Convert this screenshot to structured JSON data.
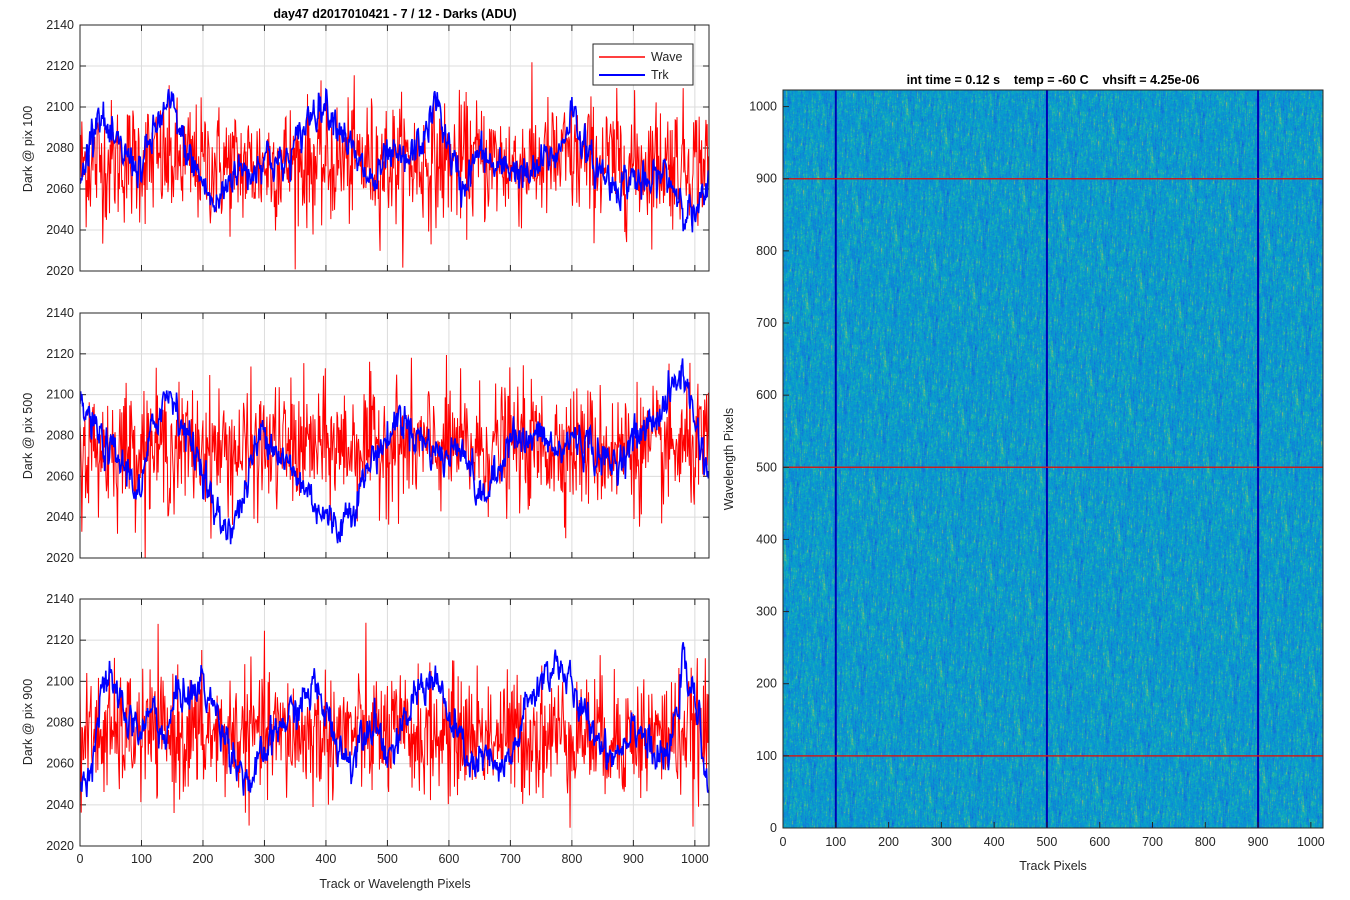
{
  "figure": {
    "title": "day47 d2017010421 - 7 / 12 - Darks (ADU)",
    "colors": {
      "wave": "#ff0000",
      "trk": "#0000ff",
      "grid": "#dcdcdc",
      "axis": "#262626"
    }
  },
  "chart_data": [
    {
      "type": "line",
      "ylabel": "Dark @ pix 100",
      "xlim": [
        0,
        1023
      ],
      "ylim": [
        2020,
        2140
      ],
      "xticks": [
        0,
        100,
        200,
        300,
        400,
        500,
        600,
        700,
        800,
        900,
        1000
      ],
      "yticks": [
        2020,
        2040,
        2060,
        2080,
        2100,
        2120,
        2140
      ],
      "grid": true,
      "legend": {
        "position": "top-right",
        "entries": [
          "Wave",
          "Trk"
        ]
      },
      "series": [
        {
          "name": "Wave",
          "color": "#ff0000",
          "x": [
            0,
            50,
            100,
            150,
            200,
            250,
            300,
            350,
            400,
            450,
            500,
            550,
            600,
            650,
            700,
            750,
            800,
            850,
            900,
            950,
            1000,
            1023
          ],
          "y": [
            2072,
            2073,
            2074,
            2073,
            2072,
            2071,
            2072,
            2073,
            2072,
            2074,
            2073,
            2072,
            2073,
            2074,
            2072,
            2073,
            2074,
            2073,
            2072,
            2074,
            2073,
            2072
          ]
        },
        {
          "name": "Trk",
          "color": "#0000ff",
          "x": [
            0,
            20,
            30,
            50,
            80,
            100,
            130,
            150,
            170,
            200,
            220,
            250,
            280,
            300,
            330,
            350,
            380,
            400,
            430,
            450,
            480,
            500,
            530,
            560,
            580,
            600,
            620,
            650,
            680,
            700,
            730,
            760,
            780,
            800,
            830,
            850,
            870,
            900,
            920,
            950,
            980,
            1000,
            1023
          ],
          "y": [
            2060,
            2090,
            2100,
            2082,
            2075,
            2070,
            2095,
            2100,
            2080,
            2063,
            2050,
            2070,
            2068,
            2078,
            2070,
            2080,
            2100,
            2102,
            2088,
            2072,
            2062,
            2075,
            2072,
            2085,
            2103,
            2080,
            2060,
            2078,
            2068,
            2072,
            2065,
            2075,
            2078,
            2100,
            2072,
            2068,
            2062,
            2066,
            2060,
            2068,
            2055,
            2045,
            2060
          ]
        }
      ]
    },
    {
      "type": "line",
      "ylabel": "Dark @ pix 500",
      "xlim": [
        0,
        1023
      ],
      "ylim": [
        2020,
        2140
      ],
      "xticks": [
        0,
        100,
        200,
        300,
        400,
        500,
        600,
        700,
        800,
        900,
        1000
      ],
      "yticks": [
        2020,
        2040,
        2060,
        2080,
        2100,
        2120,
        2140
      ],
      "grid": true,
      "series": [
        {
          "name": "Wave",
          "color": "#ff0000",
          "x": [
            0,
            50,
            100,
            150,
            200,
            250,
            300,
            350,
            400,
            450,
            500,
            550,
            600,
            650,
            700,
            750,
            800,
            850,
            900,
            950,
            1000,
            1023
          ],
          "y": [
            2072,
            2074,
            2075,
            2073,
            2074,
            2072,
            2073,
            2075,
            2074,
            2075,
            2076,
            2074,
            2075,
            2073,
            2076,
            2074,
            2075,
            2073,
            2074,
            2072,
            2074,
            2073
          ]
        },
        {
          "name": "Trk",
          "color": "#0000ff",
          "x": [
            0,
            20,
            40,
            60,
            80,
            100,
            110,
            130,
            150,
            170,
            200,
            220,
            240,
            260,
            280,
            300,
            330,
            350,
            370,
            400,
            420,
            450,
            480,
            500,
            520,
            550,
            580,
            600,
            620,
            650,
            680,
            700,
            720,
            750,
            780,
            800,
            830,
            860,
            880,
            900,
            920,
            950,
            980,
            1000,
            1023
          ],
          "y": [
            2095,
            2085,
            2075,
            2068,
            2062,
            2050,
            2072,
            2095,
            2102,
            2082,
            2065,
            2040,
            2035,
            2043,
            2068,
            2085,
            2068,
            2060,
            2053,
            2040,
            2035,
            2050,
            2072,
            2078,
            2090,
            2080,
            2072,
            2068,
            2080,
            2048,
            2060,
            2085,
            2075,
            2080,
            2070,
            2080,
            2075,
            2065,
            2070,
            2078,
            2083,
            2095,
            2112,
            2088,
            2060
          ]
        }
      ]
    },
    {
      "type": "line",
      "ylabel": "Dark @ pix 900",
      "xlabel": "Track or Wavelength Pixels",
      "xlim": [
        0,
        1023
      ],
      "ylim": [
        2020,
        2140
      ],
      "xticks": [
        0,
        100,
        200,
        300,
        400,
        500,
        600,
        700,
        800,
        900,
        1000
      ],
      "yticks": [
        2020,
        2040,
        2060,
        2080,
        2100,
        2120,
        2140
      ],
      "grid": true,
      "series": [
        {
          "name": "Wave",
          "color": "#ff0000",
          "x": [
            0,
            50,
            100,
            150,
            200,
            250,
            300,
            350,
            400,
            450,
            500,
            550,
            600,
            650,
            700,
            750,
            800,
            850,
            900,
            950,
            1000,
            1023
          ],
          "y": [
            2073,
            2074,
            2075,
            2074,
            2073,
            2074,
            2075,
            2073,
            2074,
            2075,
            2074,
            2073,
            2074,
            2075,
            2073,
            2074,
            2075,
            2074,
            2073,
            2074,
            2075,
            2074
          ]
        },
        {
          "name": "Trk",
          "color": "#0000ff",
          "x": [
            0,
            20,
            40,
            60,
            80,
            100,
            120,
            140,
            160,
            180,
            200,
            220,
            240,
            260,
            280,
            300,
            330,
            350,
            380,
            400,
            420,
            440,
            460,
            480,
            500,
            520,
            540,
            560,
            580,
            600,
            620,
            640,
            660,
            680,
            700,
            720,
            740,
            760,
            780,
            800,
            820,
            840,
            860,
            880,
            900,
            920,
            940,
            960,
            980,
            1000,
            1023
          ],
          "y": [
            2045,
            2065,
            2100,
            2095,
            2080,
            2075,
            2088,
            2070,
            2098,
            2092,
            2100,
            2085,
            2072,
            2058,
            2050,
            2065,
            2080,
            2085,
            2098,
            2085,
            2070,
            2060,
            2078,
            2082,
            2065,
            2070,
            2090,
            2100,
            2102,
            2080,
            2070,
            2058,
            2063,
            2055,
            2060,
            2082,
            2095,
            2105,
            2110,
            2095,
            2082,
            2075,
            2065,
            2068,
            2082,
            2072,
            2060,
            2065,
            2108,
            2090,
            2050
          ]
        }
      ]
    },
    {
      "type": "heatmap",
      "title": "int time = 0.12 s    temp = -60 C    vhsift = 4.25e-06",
      "xlabel": "Track Pixels",
      "ylabel": "Wavelength Pixels",
      "xlim": [
        0,
        1023
      ],
      "ylim": [
        0,
        1023
      ],
      "xticks": [
        0,
        100,
        200,
        300,
        400,
        500,
        600,
        700,
        800,
        900,
        1000
      ],
      "yticks": [
        0,
        100,
        200,
        300,
        400,
        500,
        600,
        700,
        800,
        900,
        1000
      ],
      "colormap": "parula",
      "value_range": [
        2020,
        2140
      ],
      "typical_value": 2073,
      "overlay_lines": [
        {
          "orientation": "vertical",
          "at": 100,
          "color": "#0000b4"
        },
        {
          "orientation": "vertical",
          "at": 500,
          "color": "#0000b4"
        },
        {
          "orientation": "vertical",
          "at": 900,
          "color": "#0000b4"
        },
        {
          "orientation": "horizontal",
          "at": 100,
          "color": "#c81e1e"
        },
        {
          "orientation": "horizontal",
          "at": 500,
          "color": "#c81e1e"
        },
        {
          "orientation": "horizontal",
          "at": 900,
          "color": "#c81e1e"
        }
      ]
    }
  ]
}
